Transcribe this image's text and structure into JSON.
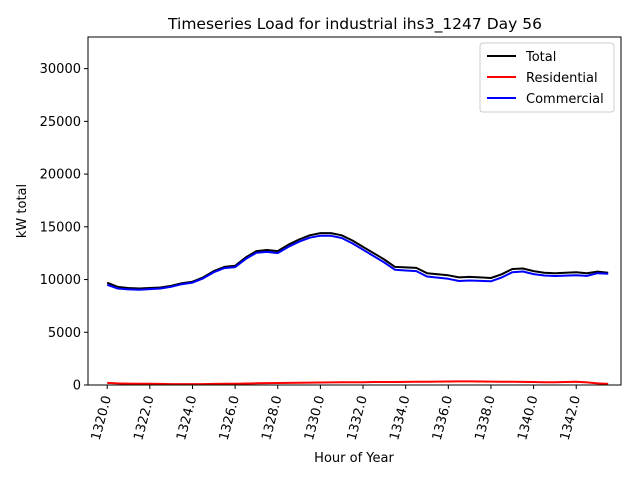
{
  "chart_data": {
    "type": "line",
    "title": "Timeseries Load for industrial ihs3_1247  Day 56",
    "xlabel": "Hour of Year",
    "ylabel": "kW total",
    "xlim": [
      1319.1,
      1344.1
    ],
    "ylim": [
      0,
      33000
    ],
    "x_ticks": [
      1320,
      1322,
      1324,
      1326,
      1328,
      1330,
      1332,
      1334,
      1336,
      1338,
      1340,
      1342
    ],
    "x_tick_labels": [
      "1320.0",
      "1322.0",
      "1324.0",
      "1326.0",
      "1328.0",
      "1330.0",
      "1332.0",
      "1334.0",
      "1336.0",
      "1338.0",
      "1340.0",
      "1342.0"
    ],
    "y_ticks": [
      0,
      5000,
      10000,
      15000,
      20000,
      25000,
      30000
    ],
    "y_tick_labels": [
      "0",
      "5000",
      "10000",
      "15000",
      "20000",
      "25000",
      "30000"
    ],
    "legend_position": "top-right",
    "series": [
      {
        "name": "Total",
        "color": "#000000",
        "x": [
          1320.0,
          1320.5,
          1321.0,
          1321.5,
          1322.0,
          1322.5,
          1323.0,
          1323.5,
          1324.0,
          1324.5,
          1325.0,
          1325.5,
          1326.0,
          1326.5,
          1327.0,
          1327.5,
          1328.0,
          1328.5,
          1329.0,
          1329.5,
          1330.0,
          1330.5,
          1331.0,
          1331.5,
          1332.0,
          1332.5,
          1333.0,
          1333.5,
          1334.0,
          1334.5,
          1335.0,
          1335.5,
          1336.0,
          1336.5,
          1337.0,
          1337.5,
          1338.0,
          1338.5,
          1339.0,
          1339.5,
          1340.0,
          1340.5,
          1341.0,
          1341.5,
          1342.0,
          1342.5,
          1343.0,
          1343.5
        ],
        "values": [
          9700,
          9300,
          9200,
          9150,
          9200,
          9250,
          9400,
          9650,
          9800,
          10200,
          10800,
          11200,
          11300,
          12100,
          12700,
          12800,
          12700,
          13300,
          13800,
          14200,
          14400,
          14400,
          14200,
          13700,
          13100,
          12500,
          11900,
          11200,
          11150,
          11100,
          10600,
          10500,
          10400,
          10200,
          10250,
          10200,
          10150,
          10500,
          11000,
          11050,
          10800,
          10650,
          10600,
          10650,
          10700,
          10600,
          10750,
          10650
        ]
      },
      {
        "name": "Residential",
        "color": "#ff0000",
        "x": [
          1320.0,
          1320.5,
          1321.0,
          1321.5,
          1322.0,
          1322.5,
          1323.0,
          1323.5,
          1324.0,
          1324.5,
          1325.0,
          1325.5,
          1326.0,
          1326.5,
          1327.0,
          1327.5,
          1328.0,
          1328.5,
          1329.0,
          1329.5,
          1330.0,
          1330.5,
          1331.0,
          1331.5,
          1332.0,
          1332.5,
          1333.0,
          1333.5,
          1334.0,
          1334.5,
          1335.0,
          1335.5,
          1336.0,
          1336.5,
          1337.0,
          1337.5,
          1338.0,
          1338.5,
          1339.0,
          1339.5,
          1340.0,
          1340.5,
          1341.0,
          1341.5,
          1342.0,
          1342.5,
          1343.0,
          1343.5
        ],
        "values": [
          200,
          150,
          130,
          120,
          110,
          100,
          90,
          90,
          90,
          90,
          100,
          110,
          120,
          140,
          160,
          180,
          190,
          200,
          210,
          230,
          240,
          250,
          260,
          270,
          270,
          280,
          280,
          280,
          290,
          300,
          310,
          320,
          330,
          340,
          340,
          330,
          320,
          310,
          300,
          290,
          280,
          270,
          260,
          280,
          300,
          250,
          150,
          100
        ]
      },
      {
        "name": "Commercial",
        "color": "#0000ff",
        "x": [
          1320.0,
          1320.5,
          1321.0,
          1321.5,
          1322.0,
          1322.5,
          1323.0,
          1323.5,
          1324.0,
          1324.5,
          1325.0,
          1325.5,
          1326.0,
          1326.5,
          1327.0,
          1327.5,
          1328.0,
          1328.5,
          1329.0,
          1329.5,
          1330.0,
          1330.5,
          1331.0,
          1331.5,
          1332.0,
          1332.5,
          1333.0,
          1333.5,
          1334.0,
          1334.5,
          1335.0,
          1335.5,
          1336.0,
          1336.5,
          1337.0,
          1337.5,
          1338.0,
          1338.5,
          1339.0,
          1339.5,
          1340.0,
          1340.5,
          1341.0,
          1341.5,
          1342.0,
          1342.5,
          1343.0,
          1343.5
        ],
        "values": [
          9500,
          9150,
          9070,
          9030,
          9090,
          9150,
          9310,
          9560,
          9710,
          10110,
          10700,
          11090,
          11180,
          11960,
          12540,
          12620,
          12510,
          13100,
          13590,
          13970,
          14160,
          14150,
          13940,
          13430,
          12830,
          12220,
          11620,
          10920,
          10860,
          10800,
          10290,
          10180,
          10070,
          9860,
          9910,
          9870,
          9830,
          10190,
          10700,
          10760,
          10520,
          10380,
          10340,
          10370,
          10400,
          10350,
          10600,
          10550
        ]
      }
    ]
  }
}
